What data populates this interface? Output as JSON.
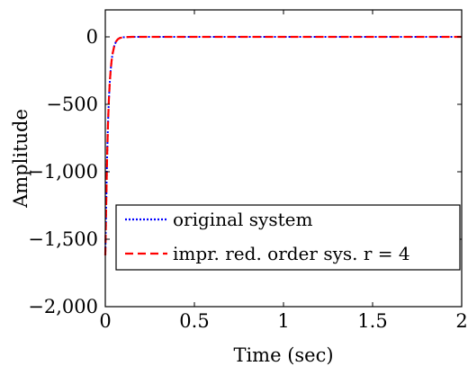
{
  "chart_data": {
    "type": "line",
    "xlabel": "Time (sec)",
    "ylabel": "Amplitude",
    "xlim": [
      0,
      2
    ],
    "ylim": [
      -2000,
      200
    ],
    "x_ticks": [
      0,
      0.5,
      1,
      1.5,
      2
    ],
    "x_tick_labels": [
      "0",
      "0.5",
      "1",
      "1.5",
      "2"
    ],
    "y_ticks": [
      0,
      -500,
      -1000,
      -1500,
      -2000
    ],
    "y_tick_labels": [
      "0",
      "−500",
      "−1,000",
      "−1,500",
      "−2,000"
    ],
    "grid": false,
    "legend_position": "lower-right",
    "series": [
      {
        "name": "original system",
        "color": "#0000ff",
        "style": "dotted",
        "x": [
          0,
          0.005,
          0.01,
          0.015,
          0.02,
          0.025,
          0.03,
          0.035,
          0.04,
          0.05,
          0.06,
          0.07,
          0.08,
          0.1,
          0.15,
          0.2,
          0.5,
          1,
          1.5,
          2
        ],
        "y": [
          -1620,
          -1250,
          -900,
          -650,
          -470,
          -340,
          -250,
          -180,
          -130,
          -70,
          -35,
          -18,
          -9,
          -3,
          0,
          0,
          0,
          0,
          0,
          0
        ]
      },
      {
        "name": "impr. red. order sys. r = 4",
        "color": "#ff0000",
        "style": "dashed",
        "x": [
          0,
          0.005,
          0.01,
          0.015,
          0.02,
          0.025,
          0.03,
          0.035,
          0.04,
          0.05,
          0.06,
          0.07,
          0.08,
          0.1,
          0.15,
          0.2,
          0.5,
          1,
          1.5,
          2
        ],
        "y": [
          -1620,
          -1250,
          -900,
          -650,
          -470,
          -340,
          -250,
          -180,
          -130,
          -70,
          -35,
          -18,
          -9,
          -3,
          0,
          0,
          0,
          0,
          0,
          0
        ]
      }
    ]
  }
}
